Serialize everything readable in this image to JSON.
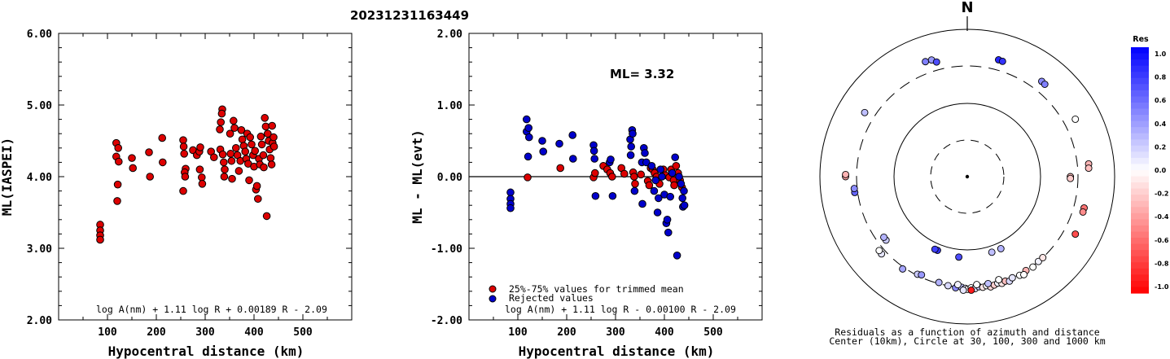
{
  "page_title": "20231231163449",
  "chart_data": [
    {
      "type": "scatter",
      "xlabel": "Hypocentral distance (km)",
      "ylabel": "ML(IASPEI)",
      "xlim": [
        0,
        600
      ],
      "ylim": [
        2.0,
        6.0
      ],
      "x_ticks": [
        "100",
        "200",
        "300",
        "400",
        "500"
      ],
      "y_ticks": [
        "2.00",
        "3.00",
        "4.00",
        "5.00",
        "6.00"
      ],
      "formula": "log A(nm) + 1.11 log R + 0.00189 R - 2.09",
      "series": [
        {
          "color": "#dd0000",
          "points": [
            [
              85,
              3.33
            ],
            [
              85,
              3.25
            ],
            [
              85,
              3.18
            ],
            [
              85,
              3.12
            ],
            [
              118,
              4.47
            ],
            [
              118,
              4.28
            ],
            [
              122,
              4.4
            ],
            [
              123,
              4.21
            ],
            [
              121,
              3.89
            ],
            [
              120,
              3.66
            ],
            [
              150,
              4.26
            ],
            [
              152,
              4.12
            ],
            [
              185,
              4.34
            ],
            [
              187,
              4.0
            ],
            [
              212,
              4.54
            ],
            [
              213,
              4.2
            ],
            [
              255,
              4.51
            ],
            [
              256,
              4.42
            ],
            [
              257,
              4.32
            ],
            [
              260,
              4.11
            ],
            [
              258,
              4.06
            ],
            [
              255,
              3.8
            ],
            [
              259,
              4.0
            ],
            [
              275,
              4.37
            ],
            [
              283,
              4.3
            ],
            [
              288,
              4.35
            ],
            [
              290,
              4.41
            ],
            [
              289,
              4.1
            ],
            [
              293,
              3.99
            ],
            [
              294,
              3.9
            ],
            [
              312,
              4.35
            ],
            [
              318,
              4.27
            ],
            [
              330,
              4.66
            ],
            [
              332,
              4.76
            ],
            [
              335,
              4.94
            ],
            [
              334,
              4.88
            ],
            [
              331,
              4.38
            ],
            [
              336,
              4.31
            ],
            [
              338,
              4.2
            ],
            [
              340,
              4.1
            ],
            [
              339,
              4.0
            ],
            [
              351,
              4.6
            ],
            [
              352,
              4.32
            ],
            [
              354,
              4.22
            ],
            [
              355,
              3.97
            ],
            [
              358,
              4.78
            ],
            [
              360,
              4.68
            ],
            [
              363,
              4.4
            ],
            [
              366,
              4.3
            ],
            [
              369,
              4.08
            ],
            [
              372,
              4.22
            ],
            [
              374,
              4.65
            ],
            [
              376,
              4.52
            ],
            [
              379,
              4.43
            ],
            [
              382,
              4.35
            ],
            [
              384,
              4.25
            ],
            [
              386,
              4.6
            ],
            [
              388,
              4.18
            ],
            [
              390,
              3.95
            ],
            [
              392,
              4.55
            ],
            [
              395,
              4.45
            ],
            [
              398,
              4.3
            ],
            [
              400,
              4.14
            ],
            [
              402,
              4.36
            ],
            [
              404,
              3.82
            ],
            [
              406,
              3.87
            ],
            [
              408,
              3.69
            ],
            [
              410,
              4.25
            ],
            [
              412,
              4.17
            ],
            [
              414,
              4.56
            ],
            [
              416,
              4.45
            ],
            [
              419,
              4.3
            ],
            [
              420,
              4.13
            ],
            [
              422,
              4.82
            ],
            [
              424,
              4.7
            ],
            [
              426,
              3.45
            ],
            [
              428,
              4.6
            ],
            [
              430,
              4.5
            ],
            [
              432,
              4.38
            ],
            [
              434,
              4.26
            ],
            [
              436,
              4.17
            ],
            [
              437,
              4.71
            ],
            [
              438,
              4.47
            ],
            [
              440,
              4.55
            ],
            [
              441,
              4.42
            ]
          ]
        }
      ]
    },
    {
      "type": "scatter",
      "xlabel": "Hypocentral distance (km)",
      "ylabel": "ML - ML(evt)",
      "xlim": [
        0,
        600
      ],
      "ylim": [
        -2.0,
        2.0
      ],
      "x_ticks": [
        "100",
        "200",
        "300",
        "400",
        "500"
      ],
      "y_ticks": [
        "-2.00",
        "-1.00",
        "0.00",
        "1.00",
        "2.00"
      ],
      "annotation": "ML= 3.32",
      "formula": "log A(nm) + 1.11 log R - 0.00100 R - 2.09",
      "legend": [
        "25%-75% values for trimmed mean",
        "Rejected values"
      ],
      "series": [
        {
          "name": "25%-75% values for trimmed mean",
          "color": "#dd0000",
          "points": [
            [
              120,
              -0.01
            ],
            [
              187,
              0.12
            ],
            [
              255,
              -0.01
            ],
            [
              258,
              0.05
            ],
            [
              275,
              0.15
            ],
            [
              283,
              0.1
            ],
            [
              289,
              0.05
            ],
            [
              293,
              0.0
            ],
            [
              312,
              0.12
            ],
            [
              318,
              0.04
            ],
            [
              336,
              0.06
            ],
            [
              338,
              0.0
            ],
            [
              340,
              -0.1
            ],
            [
              352,
              0.03
            ],
            [
              366,
              -0.06
            ],
            [
              369,
              -0.12
            ],
            [
              372,
              0.12
            ],
            [
              376,
              0.1
            ],
            [
              380,
              0.05
            ],
            [
              384,
              0.0
            ],
            [
              390,
              -0.1
            ],
            [
              398,
              0.1
            ],
            [
              402,
              0.02
            ],
            [
              410,
              -0.01
            ],
            [
              414,
              0.1
            ],
            [
              419,
              -0.05
            ],
            [
              420,
              -0.12
            ],
            [
              424,
              0.15
            ],
            [
              428,
              0.05
            ],
            [
              432,
              -0.05
            ],
            [
              436,
              -0.15
            ]
          ]
        },
        {
          "name": "Rejected values",
          "color": "#0000cc",
          "points": [
            [
              85,
              -0.22
            ],
            [
              85,
              -0.31
            ],
            [
              85,
              -0.38
            ],
            [
              85,
              -0.44
            ],
            [
              118,
              0.8
            ],
            [
              118,
              0.63
            ],
            [
              122,
              0.68
            ],
            [
              123,
              0.55
            ],
            [
              121,
              0.28
            ],
            [
              150,
              0.5
            ],
            [
              152,
              0.35
            ],
            [
              185,
              0.46
            ],
            [
              212,
              0.58
            ],
            [
              213,
              0.25
            ],
            [
              255,
              0.44
            ],
            [
              256,
              0.36
            ],
            [
              257,
              0.25
            ],
            [
              259,
              -0.27
            ],
            [
              288,
              0.2
            ],
            [
              290,
              0.24
            ],
            [
              294,
              -0.27
            ],
            [
              330,
              0.52
            ],
            [
              332,
              0.42
            ],
            [
              334,
              0.65
            ],
            [
              335,
              0.6
            ],
            [
              331,
              0.3
            ],
            [
              339,
              -0.2
            ],
            [
              354,
              0.2
            ],
            [
              355,
              -0.38
            ],
            [
              358,
              0.4
            ],
            [
              360,
              0.33
            ],
            [
              363,
              0.2
            ],
            [
              374,
              0.15
            ],
            [
              379,
              -0.2
            ],
            [
              382,
              -0.05
            ],
            [
              386,
              -0.5
            ],
            [
              388,
              -0.3
            ],
            [
              392,
              0.1
            ],
            [
              395,
              0.0
            ],
            [
              400,
              -0.25
            ],
            [
              404,
              -0.65
            ],
            [
              406,
              -0.6
            ],
            [
              408,
              -0.78
            ],
            [
              412,
              -0.28
            ],
            [
              416,
              0.05
            ],
            [
              422,
              0.27
            ],
            [
              426,
              -1.1
            ],
            [
              430,
              0.0
            ],
            [
              434,
              -0.1
            ],
            [
              437,
              -0.3
            ],
            [
              438,
              -0.42
            ],
            [
              440,
              -0.2
            ],
            [
              441,
              -0.4
            ]
          ]
        }
      ]
    },
    {
      "type": "scatter",
      "title": "N",
      "caption_lines": [
        "Residuals as a function of azimuth and distance",
        "Center (10km), Circle at 30, 100, 300 and 1000 km"
      ],
      "colorbar": {
        "label": "Res",
        "tick_labels": [
          "1.0",
          "0.8",
          "0.6",
          "0.4",
          "0.2",
          "0.0",
          "-0.2",
          "-0.4",
          "-0.6",
          "-0.8",
          "-1.0"
        ],
        "range": [
          -1.0,
          1.0
        ]
      },
      "station_residuals": [
        {
          "azimuth": 340,
          "distance_km": 440,
          "residual": 0.5
        },
        {
          "azimuth": 343,
          "distance_km": 435,
          "residual": 0.4
        },
        {
          "azimuth": 345,
          "distance_km": 390,
          "residual": 0.7
        },
        {
          "azimuth": 15,
          "distance_km": 420,
          "residual": 0.85
        },
        {
          "azimuth": 17,
          "distance_km": 415,
          "residual": 0.8
        },
        {
          "azimuth": 38,
          "distance_km": 420,
          "residual": 0.45
        },
        {
          "azimuth": 40,
          "distance_km": 415,
          "residual": 0.5
        },
        {
          "azimuth": 62,
          "distance_km": 440,
          "residual": 0.0
        },
        {
          "azimuth": 302,
          "distance_km": 420,
          "residual": 0.25
        },
        {
          "azimuth": 84,
          "distance_km": 435,
          "residual": -0.3
        },
        {
          "azimuth": 86,
          "distance_km": 430,
          "residual": -0.25
        },
        {
          "azimuth": 90,
          "distance_km": 240,
          "residual": -0.25
        },
        {
          "azimuth": 91,
          "distance_km": 240,
          "residual": -0.2
        },
        {
          "azimuth": 270,
          "distance_km": 430,
          "residual": -0.35
        },
        {
          "azimuth": 271,
          "distance_km": 430,
          "residual": -0.3
        },
        {
          "azimuth": 262,
          "distance_km": 330,
          "residual": 0.6
        },
        {
          "azimuth": 264,
          "distance_km": 330,
          "residual": 0.45
        },
        {
          "azimuth": 105,
          "distance_km": 420,
          "residual": -0.55
        },
        {
          "azimuth": 107,
          "distance_km": 420,
          "residual": -0.45
        },
        {
          "azimuth": 118,
          "distance_km": 440,
          "residual": -0.7
        },
        {
          "azimuth": 232,
          "distance_km": 240,
          "residual": 0.2
        },
        {
          "azimuth": 234,
          "distance_km": 240,
          "residual": 0.3
        },
        {
          "azimuth": 202,
          "distance_km": 120,
          "residual": 0.8
        },
        {
          "azimuth": 204,
          "distance_km": 120,
          "residual": 0.75
        },
        {
          "azimuth": 186,
          "distance_km": 125,
          "residual": 0.7
        },
        {
          "azimuth": 155,
          "distance_km": 120,
          "residual": 0.3
        },
        {
          "azimuth": 162,
          "distance_km": 120,
          "residual": 0.25
        },
        {
          "azimuth": 228,
          "distance_km": 350,
          "residual": 0.1
        },
        {
          "azimuth": 230,
          "distance_km": 345,
          "residual": 0.0
        },
        {
          "azimuth": 215,
          "distance_km": 320,
          "residual": 0.35
        },
        {
          "azimuth": 207,
          "distance_km": 290,
          "residual": 0.2
        },
        {
          "azimuth": 205,
          "distance_km": 280,
          "residual": 0.4
        },
        {
          "azimuth": 195,
          "distance_km": 290,
          "residual": 0.3
        },
        {
          "azimuth": 190,
          "distance_km": 300,
          "residual": 0.15
        },
        {
          "azimuth": 186,
          "distance_km": 310,
          "residual": 0.45
        },
        {
          "azimuth": 183,
          "distance_km": 300,
          "residual": 0.25
        },
        {
          "azimuth": 181,
          "distance_km": 310,
          "residual": 0.1
        },
        {
          "azimuth": 180,
          "distance_km": 320,
          "residual": -0.05
        },
        {
          "azimuth": 178,
          "distance_km": 305,
          "residual": 0.0
        },
        {
          "azimuth": 176,
          "distance_km": 315,
          "residual": 0.1
        },
        {
          "azimuth": 174,
          "distance_km": 300,
          "residual": 0.2
        },
        {
          "azimuth": 172,
          "distance_km": 310,
          "residual": -0.1
        },
        {
          "azimuth": 170,
          "distance_km": 300,
          "residual": 0.0
        },
        {
          "azimuth": 168,
          "distance_km": 320,
          "residual": -0.15
        },
        {
          "azimuth": 166,
          "distance_km": 310,
          "residual": -0.2
        },
        {
          "azimuth": 164,
          "distance_km": 300,
          "residual": 0.05
        },
        {
          "azimuth": 162,
          "distance_km": 315,
          "residual": -0.1
        },
        {
          "azimuth": 160,
          "distance_km": 305,
          "residual": -0.25
        },
        {
          "azimuth": 158,
          "distance_km": 320,
          "residual": 0.15
        },
        {
          "azimuth": 156,
          "distance_km": 300,
          "residual": 0.1
        },
        {
          "azimuth": 152,
          "distance_km": 310,
          "residual": 0.0
        },
        {
          "azimuth": 148,
          "distance_km": 300,
          "residual": -0.3
        },
        {
          "azimuth": 185,
          "distance_km": 280,
          "residual": 0.05
        },
        {
          "azimuth": 175,
          "distance_km": 280,
          "residual": 0.0
        },
        {
          "azimuth": 169,
          "distance_km": 285,
          "residual": 0.25
        },
        {
          "azimuth": 163,
          "distance_km": 275,
          "residual": 0.0
        },
        {
          "azimuth": 178,
          "distance_km": 330,
          "residual": -0.9
        },
        {
          "azimuth": 182,
          "distance_km": 330,
          "residual": 0.1
        },
        {
          "azimuth": 150,
          "distance_km": 325,
          "residual": 0.0
        },
        {
          "azimuth": 144,
          "distance_km": 310,
          "residual": 0.0
        },
        {
          "azimuth": 140,
          "distance_km": 300,
          "residual": 0.05
        },
        {
          "azimuth": 137,
          "distance_km": 300,
          "residual": -0.1
        }
      ]
    }
  ]
}
